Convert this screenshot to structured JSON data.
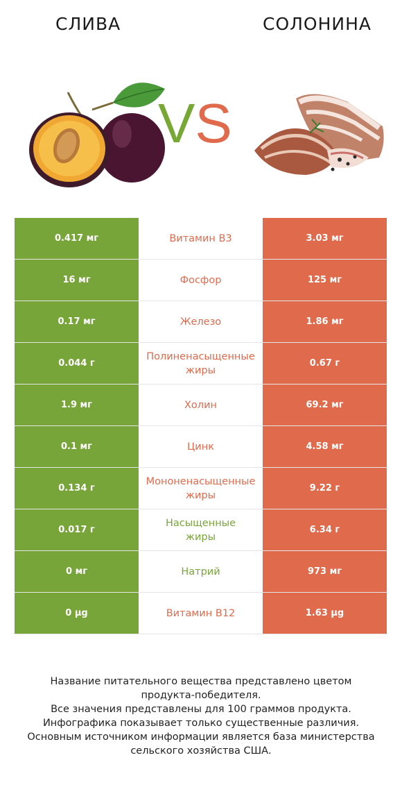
{
  "header": {
    "left_title": "СЛИВА",
    "right_title": "СОЛОНИНА",
    "vs_v": "V",
    "vs_s": "S"
  },
  "colors": {
    "left": "#78a53a",
    "right": "#e06a4c"
  },
  "rows": [
    {
      "left": "0.417 мг",
      "nutrient": "Витамин B3",
      "right": "3.03 мг",
      "winner": "right"
    },
    {
      "left": "16 мг",
      "nutrient": "Фосфор",
      "right": "125 мг",
      "winner": "right"
    },
    {
      "left": "0.17 мг",
      "nutrient": "Железо",
      "right": "1.86 мг",
      "winner": "right"
    },
    {
      "left": "0.044 г",
      "nutrient_line1": "Полиненасыщенные",
      "nutrient_line2": "жиры",
      "right": "0.67 г",
      "winner": "right"
    },
    {
      "left": "1.9 мг",
      "nutrient": "Холин",
      "right": "69.2 мг",
      "winner": "right"
    },
    {
      "left": "0.1 мг",
      "nutrient": "Цинк",
      "right": "4.58 мг",
      "winner": "right"
    },
    {
      "left": "0.134 г",
      "nutrient_line1": "Мононенасыщенные",
      "nutrient_line2": "жиры",
      "right": "9.22 г",
      "winner": "right"
    },
    {
      "left": "0.017 г",
      "nutrient_line1": "Насыщенные",
      "nutrient_line2": "жиры",
      "right": "6.34 г",
      "winner": "left"
    },
    {
      "left": "0 мг",
      "nutrient": "Натрий",
      "right": "973 мг",
      "winner": "left"
    },
    {
      "left": "0 µg",
      "nutrient": "Витамин B12",
      "right": "1.63 µg",
      "winner": "right"
    }
  ],
  "footer": {
    "line1": "Название питательного вещества представлено цветом",
    "line2": "продукта-победителя.",
    "line3": "Все значения представлены для 100 граммов продукта.",
    "line4": "Инфографика показывает только существенные различия.",
    "line5": "Основным источником информации является база министерства",
    "line6": "сельского хозяйства США."
  }
}
